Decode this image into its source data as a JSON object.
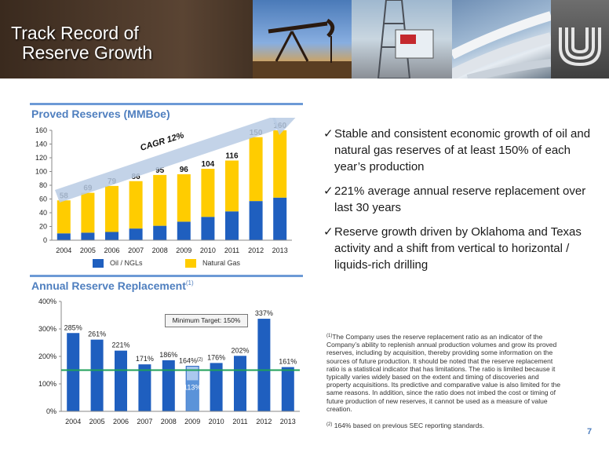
{
  "header": {
    "title_line1": "Track Record of",
    "title_line2": "Reserve Growth"
  },
  "colors": {
    "accent": "#4f7fbf",
    "bar_blue": "#1f5fbf",
    "bar_yellow": "#ffcc00",
    "target_line": "#1fa05a"
  },
  "chart_data": [
    {
      "type": "bar",
      "title": "Proved Reserves (MMBoe)",
      "categories": [
        "2004",
        "2005",
        "2006",
        "2007",
        "2008",
        "2009",
        "2010",
        "2011",
        "2012",
        "2013"
      ],
      "ylim": [
        0,
        160
      ],
      "yticks": [
        0,
        20,
        40,
        60,
        80,
        100,
        120,
        140,
        160
      ],
      "stacked": true,
      "grid": false,
      "legend_position": "bottom",
      "series": [
        {
          "name": "Oil / NGLs",
          "color": "#1f5fbf",
          "values": [
            10,
            11,
            12,
            17,
            21,
            27,
            34,
            42,
            57,
            62
          ]
        },
        {
          "name": "Natural Gas",
          "color": "#ffcc00",
          "values": [
            48,
            58,
            67,
            69,
            74,
            69,
            70,
            74,
            93,
            98
          ]
        }
      ],
      "totals": [
        58,
        69,
        79,
        86,
        95,
        96,
        104,
        116,
        150,
        160
      ],
      "total_labels": [
        "58",
        "69",
        "79",
        "86",
        "95",
        "96",
        "104",
        "116",
        "150",
        "160"
      ],
      "annotation": "CAGR 12%"
    },
    {
      "type": "bar",
      "title": "Annual Reserve Replacement",
      "title_sup": "(1)",
      "categories": [
        "2004",
        "2005",
        "2006",
        "2007",
        "2008",
        "2009",
        "2010",
        "2011",
        "2012",
        "2013"
      ],
      "ylim": [
        0,
        400
      ],
      "yticks": [
        0,
        100,
        200,
        300,
        400
      ],
      "ytick_labels": [
        "0%",
        "100%",
        "200%",
        "300%",
        "400%"
      ],
      "grid": false,
      "values": [
        285,
        261,
        221,
        171,
        186,
        113,
        176,
        202,
        337,
        161
      ],
      "value_labels": [
        "285%",
        "261%",
        "221%",
        "171%",
        "186%",
        "113%",
        "176%",
        "202%",
        "337%",
        "161%"
      ],
      "overlay": {
        "index": 5,
        "value": 164,
        "label": "164%",
        "sup": "(2)"
      },
      "target_line": {
        "value": 150,
        "label": "Minimum Target: 150%"
      }
    }
  ],
  "bullets": [
    {
      "text": "Stable and consistent economic growth of oil and natural gas reserves of at least 150% of each year’s production"
    },
    {
      "text": "221% average annual reserve replacement over last 30 years"
    },
    {
      "text": "Reserve growth driven by Oklahoma and Texas activity and a shift from vertical to horizontal / liquids-rich drilling"
    }
  ],
  "check_glyph": "✓",
  "footnotes": [
    {
      "sup": "(1)",
      "text": "The Company uses the reserve replacement ratio as an indicator of the Company’s ability to replenish annual production volumes and grow its proved reserves, including by acquisition, thereby providing some information on the sources of future production. It should be noted that the reserve replacement ratio is a statistical indicator that has limitations. The ratio is limited because it typically varies widely based on the extent and timing of discoveries and property acquisitions. Its predictive and comparative value is also limited for the same reasons. In addition, since the ratio does not imbed the cost or timing of future production of new reserves, it cannot be used as a measure of value creation."
    },
    {
      "sup": "(2)",
      "text": "164% based on previous SEC reporting standards."
    }
  ],
  "page_number": "7"
}
